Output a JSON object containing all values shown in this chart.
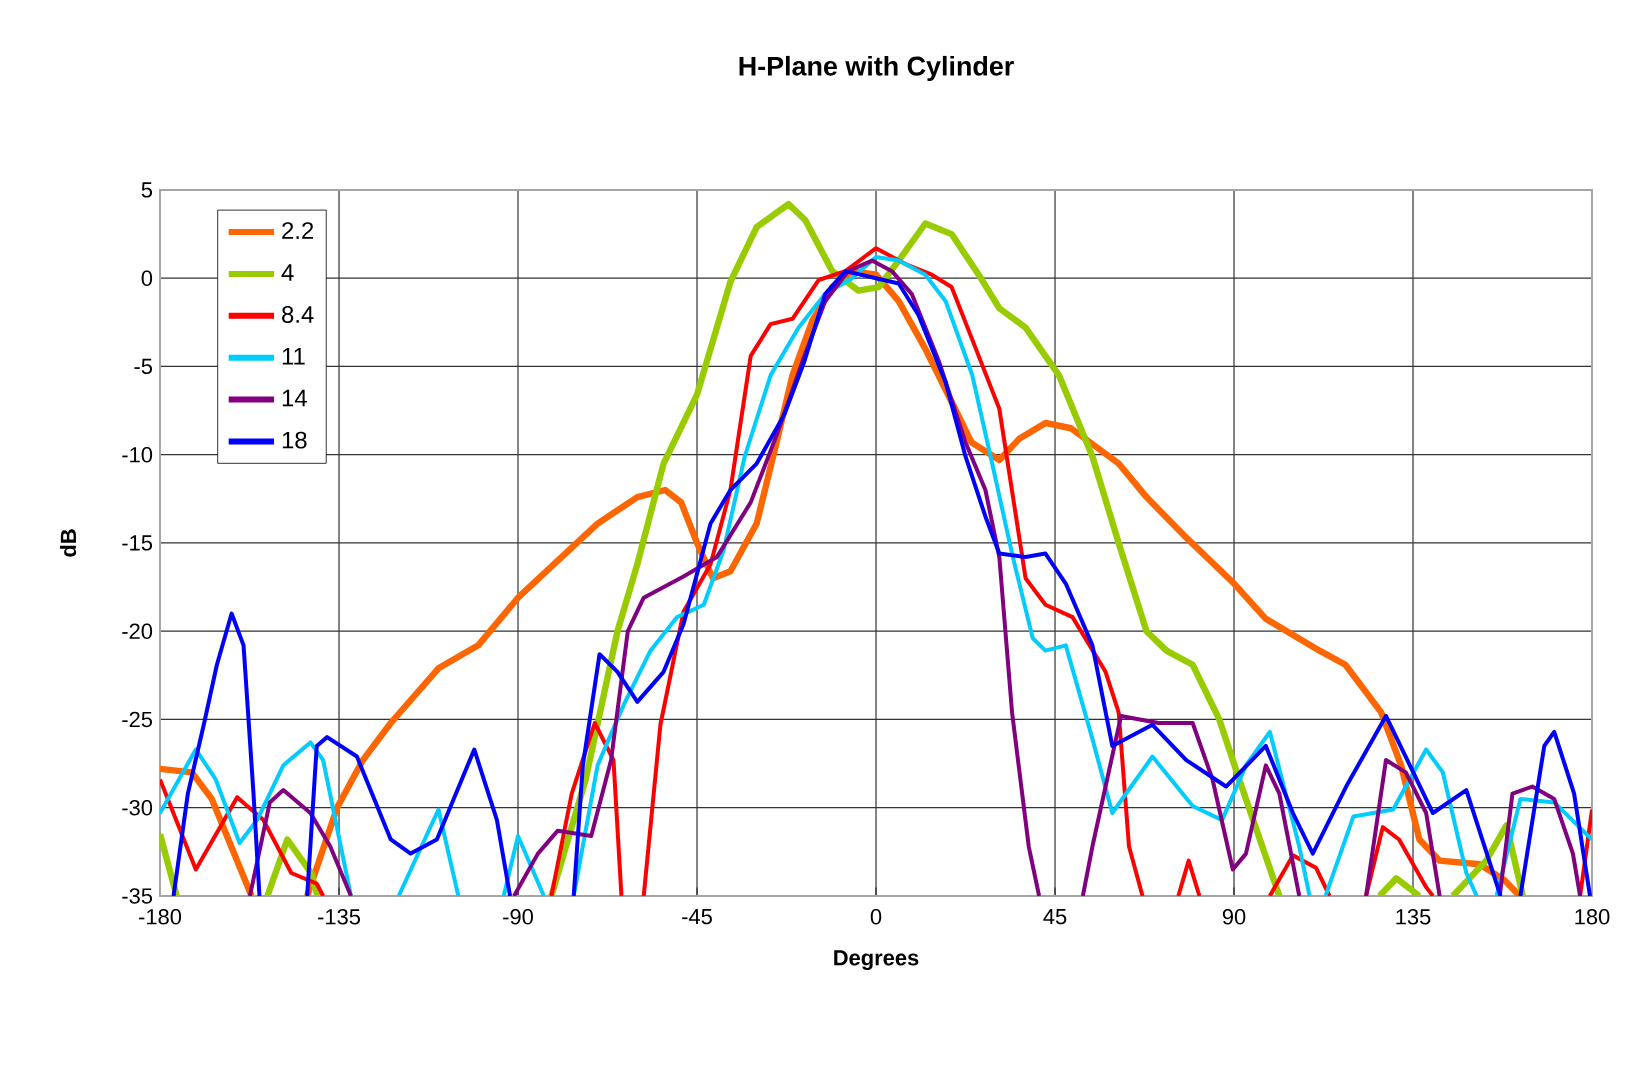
{
  "chart_data": {
    "type": "line",
    "title": "H-Plane with Cylinder",
    "xlabel": "Degrees",
    "ylabel": "dB",
    "xlim": [
      -180,
      180
    ],
    "ylim": [
      -35,
      5
    ],
    "xticks": [
      -180,
      -135,
      -90,
      -45,
      0,
      45,
      90,
      135,
      180
    ],
    "yticks": [
      -35,
      -30,
      -25,
      -20,
      -15,
      -10,
      -5,
      0,
      5
    ],
    "grid": true,
    "legend": "top left",
    "series": [
      {
        "name": "2.2",
        "color": "#ff6600",
        "x": [
          -180,
          -172,
          -167,
          -157,
          -150,
          -143,
          -135.5,
          -129,
          -122,
          -110,
          -100,
          -90,
          -80,
          -70,
          -60,
          -53,
          -49,
          -45,
          -41,
          -36.6,
          -30,
          -25,
          -21,
          -16,
          -11,
          -6,
          0,
          5.7,
          12.4,
          19,
          24,
          31,
          36,
          42.6,
          49,
          61,
          68,
          78,
          90,
          98,
          111.5,
          118,
          127,
          132,
          136.6,
          141.7,
          151.7,
          158,
          161.8
        ],
        "values": [
          -27.8,
          -28,
          -29.5,
          -35,
          null,
          -35,
          -30,
          -27.3,
          -25.2,
          -22.1,
          -20.8,
          -18.1,
          -16,
          -13.9,
          -12.4,
          -12,
          -12.7,
          -15,
          -17,
          -16.6,
          -13.9,
          -9.3,
          -5.5,
          -2.4,
          -0.5,
          0.4,
          0.2,
          -1.3,
          -4,
          -7,
          -9.3,
          -10.3,
          -9.1,
          -8.2,
          -8.5,
          -10.5,
          -12.4,
          -14.7,
          -17.3,
          -19.3,
          -21.1,
          -21.9,
          -24.6,
          -27.6,
          -31.8,
          -33,
          -33.2,
          -34.1,
          -35
        ]
      },
      {
        "name": "4",
        "color": "#99cc00",
        "x": [
          -180,
          -175.8,
          -165,
          -153,
          -148,
          -142,
          -140.4,
          -110,
          -81.6,
          -73,
          -65,
          -60,
          -53.4,
          -45,
          -36.6,
          -30,
          -22,
          -17.8,
          -11,
          -4.4,
          0.7,
          5.7,
          12.4,
          19,
          25.8,
          31,
          37.6,
          46,
          54.4,
          61,
          68,
          73,
          79.6,
          86.3,
          91.3,
          101.4,
          115,
          126.6,
          130.8,
          136.6,
          140,
          145,
          153.4,
          158.5,
          162.6
        ],
        "values": [
          -31.5,
          -35,
          null,
          -35,
          -31.8,
          -33.7,
          -35,
          null,
          -35,
          -28.4,
          -20,
          -16.2,
          -10.5,
          -6.6,
          -0.2,
          2.9,
          4.2,
          3.3,
          0.4,
          -0.7,
          -0.5,
          1,
          3.1,
          2.5,
          0.2,
          -1.7,
          -2.8,
          -5.5,
          -10.1,
          -15,
          -20,
          -21.1,
          -21.9,
          -25,
          -28.4,
          -35,
          null,
          -35,
          -34,
          -35,
          null,
          -35,
          -33,
          -31,
          -35
        ]
      },
      {
        "name": "8.4",
        "color": "#ff0000",
        "x": [
          -180,
          -171,
          -160.6,
          -154,
          -147,
          -140.6,
          -139,
          -110,
          -81.6,
          -76.5,
          -70.7,
          -66,
          -64,
          -61,
          -58.4,
          -54.2,
          -48.4,
          -41.6,
          -36.6,
          -31.5,
          -26.5,
          -21,
          -14.4,
          -7.7,
          0,
          7.4,
          14,
          19,
          25.8,
          31,
          37.6,
          42.6,
          49.4,
          57.7,
          61,
          63.6,
          67,
          72,
          76,
          78.6,
          81.3,
          90,
          99,
          104.8,
          110.6,
          114,
          118,
          123.2,
          127.4,
          131.5,
          138.3,
          140,
          160,
          177,
          180
        ],
        "values": [
          -28.4,
          -33.5,
          -29.4,
          -30.7,
          -33.7,
          -34.3,
          -35,
          null,
          -35,
          -29.2,
          -25.2,
          -27.3,
          -35,
          null,
          -35,
          -25.3,
          -18.9,
          -16.2,
          -12,
          -4.4,
          -2.6,
          -2.3,
          -0.1,
          0.4,
          1.7,
          0.8,
          0.2,
          -0.5,
          -4.4,
          -7.4,
          -17,
          -18.5,
          -19.2,
          -22.3,
          -24.6,
          -32.2,
          -35,
          null,
          -35,
          -33,
          -35,
          null,
          -35,
          -32.7,
          -33.4,
          -35,
          null,
          -35,
          -31.1,
          -31.8,
          -34.5,
          -35,
          null,
          -35,
          -30.1
        ]
      },
      {
        "name": "11",
        "color": "#00ccff",
        "x": [
          -180,
          -171,
          -166,
          -160,
          -155.6,
          -149,
          -142.2,
          -139,
          -132,
          -126,
          -120,
          -110,
          -105,
          -100,
          -93.6,
          -90,
          -83.5,
          -80,
          -76,
          -70,
          -63.5,
          -56.7,
          -50,
          -43.3,
          -38.3,
          -33,
          -26.5,
          -19.5,
          -12.8,
          -6,
          0,
          5.7,
          12.4,
          17.5,
          24.2,
          29.2,
          34.4,
          39.4,
          42.6,
          47.7,
          54.4,
          59.4,
          69.5,
          79.6,
          87,
          93,
          99,
          106.4,
          109,
          111,
          113,
          120,
          130,
          138.3,
          142.5,
          148.4,
          151,
          153,
          156,
          162,
          170.5,
          180
        ],
        "values": [
          -30.3,
          -26.7,
          -28.4,
          -32,
          -30.7,
          -27.6,
          -26.3,
          -27.3,
          -35,
          null,
          -35,
          -30.1,
          -35,
          null,
          -35,
          -31.6,
          -35,
          null,
          -35,
          -27.6,
          -24.2,
          -21.1,
          -19.2,
          -18.5,
          -15.4,
          -10.1,
          -5.5,
          -2.8,
          -0.9,
          0,
          1.2,
          1,
          0.2,
          -1.3,
          -5.5,
          -10.5,
          -15.8,
          -20.4,
          -21.1,
          -20.8,
          -26.1,
          -30.3,
          -27.1,
          -29.9,
          -30.7,
          -27.6,
          -25.7,
          -32.2,
          -35,
          null,
          -35,
          -30.5,
          -30.1,
          -26.7,
          -28,
          -33.7,
          -35,
          null,
          -35,
          -29.5,
          -29.7,
          -31.8
        ]
      },
      {
        "name": "14",
        "color": "#800080",
        "x": [
          -157.4,
          -152.4,
          -149,
          -142.2,
          -137.2,
          -132,
          -110,
          -91,
          -85,
          -80,
          -71.6,
          -66.6,
          -62.4,
          -58.4,
          -48.4,
          -40,
          -31.5,
          -25,
          -18,
          -12.8,
          -7,
          -1,
          4,
          9,
          15.8,
          22.5,
          27.5,
          31,
          34.2,
          38.4,
          41,
          46,
          52,
          54.4,
          61.6,
          71,
          79.6,
          84.6,
          89.7,
          93,
          98,
          101.4,
          106.4,
          115,
          123.2,
          128.2,
          133.2,
          138.3,
          141.7,
          150,
          156.8,
          160,
          165,
          170.5,
          175.2,
          177
        ],
        "values": [
          -35,
          -29.7,
          -29,
          -30.3,
          -32.2,
          -35,
          null,
          -35,
          -32.6,
          -31.3,
          -31.6,
          -27.3,
          -20,
          -18.1,
          -16.9,
          -15.8,
          -12.7,
          -8.9,
          -4.4,
          -1.3,
          0.4,
          1,
          0.4,
          -0.9,
          -4.7,
          -9.3,
          -12,
          -15.8,
          -24.6,
          -32.2,
          -35,
          null,
          -35,
          -32.2,
          -24.8,
          -25.2,
          -25.2,
          -28.4,
          -33.5,
          -32.6,
          -27.6,
          -29.2,
          -35,
          null,
          -35,
          -27.3,
          -28,
          -30.3,
          -35,
          null,
          -35,
          -29.2,
          -28.8,
          -29.5,
          -32.6,
          -35
        ]
      },
      {
        "name": "18",
        "color": "#0000ff",
        "x": [
          -176.6,
          -173,
          -169,
          -165.7,
          -162,
          -159,
          -156.5,
          -155,
          -150,
          -143,
          -140.6,
          -138,
          -130.5,
          -122,
          -117,
          -110.4,
          -101,
          -95.3,
          -92,
          -85,
          -76,
          -73.7,
          -69.5,
          -65,
          -60,
          -53.4,
          -48.4,
          -41.6,
          -36.6,
          -30,
          -23,
          -18,
          -12.8,
          -7.7,
          0,
          5.7,
          10.7,
          17.5,
          22.5,
          27.5,
          31,
          37.6,
          42.6,
          47.7,
          54.4,
          59.4,
          69.5,
          78,
          88,
          98,
          104.8,
          109.8,
          118.2,
          128.2,
          140,
          148.4,
          157,
          160,
          162,
          168,
          170.5,
          175.5,
          179.5
        ],
        "values": [
          -35,
          -29.2,
          -25.3,
          -21.9,
          -19,
          -20.8,
          -29.2,
          -35,
          null,
          -35,
          -26.5,
          -26,
          -27.1,
          -31.8,
          -32.6,
          -31.8,
          -26.7,
          -30.7,
          -35,
          null,
          -35,
          -27.6,
          -21.3,
          -22.3,
          -24,
          -22.3,
          -19.6,
          -13.9,
          -12,
          -10.5,
          -7.7,
          -4.7,
          -0.9,
          0.4,
          0,
          -0.3,
          -2.1,
          -5.9,
          -10.1,
          -13.5,
          -15.6,
          -15.8,
          -15.6,
          -17.3,
          -20.8,
          -26.5,
          -25.3,
          -27.3,
          -28.8,
          -26.5,
          -30.3,
          -32.6,
          -28.8,
          -24.8,
          -30.3,
          -29,
          -35,
          null,
          -35,
          -26.5,
          -25.7,
          -29.2,
          -35
        ]
      }
    ]
  }
}
